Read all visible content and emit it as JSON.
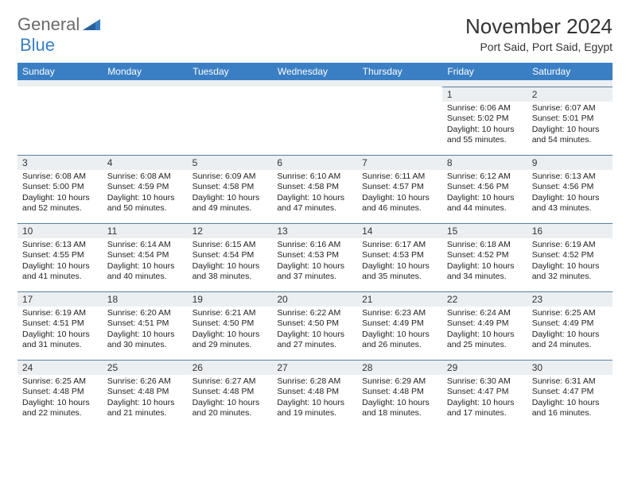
{
  "logo": {
    "part1": "General",
    "part2": "Blue"
  },
  "title": "November 2024",
  "location": "Port Said, Port Said, Egypt",
  "dow": [
    "Sunday",
    "Monday",
    "Tuesday",
    "Wednesday",
    "Thursday",
    "Friday",
    "Saturday"
  ],
  "colors": {
    "header_bg": "#3a7fc4",
    "header_text": "#ffffff",
    "daynum_bg": "#eceff2",
    "border": "#5a7ea0",
    "logo_gray": "#6a6a6a",
    "logo_blue": "#3a7fc4"
  },
  "weeks": [
    [
      null,
      null,
      null,
      null,
      null,
      {
        "n": "1",
        "sr": "6:06 AM",
        "ss": "5:02 PM",
        "dl": "10 hours and 55 minutes."
      },
      {
        "n": "2",
        "sr": "6:07 AM",
        "ss": "5:01 PM",
        "dl": "10 hours and 54 minutes."
      }
    ],
    [
      {
        "n": "3",
        "sr": "6:08 AM",
        "ss": "5:00 PM",
        "dl": "10 hours and 52 minutes."
      },
      {
        "n": "4",
        "sr": "6:08 AM",
        "ss": "4:59 PM",
        "dl": "10 hours and 50 minutes."
      },
      {
        "n": "5",
        "sr": "6:09 AM",
        "ss": "4:58 PM",
        "dl": "10 hours and 49 minutes."
      },
      {
        "n": "6",
        "sr": "6:10 AM",
        "ss": "4:58 PM",
        "dl": "10 hours and 47 minutes."
      },
      {
        "n": "7",
        "sr": "6:11 AM",
        "ss": "4:57 PM",
        "dl": "10 hours and 46 minutes."
      },
      {
        "n": "8",
        "sr": "6:12 AM",
        "ss": "4:56 PM",
        "dl": "10 hours and 44 minutes."
      },
      {
        "n": "9",
        "sr": "6:13 AM",
        "ss": "4:56 PM",
        "dl": "10 hours and 43 minutes."
      }
    ],
    [
      {
        "n": "10",
        "sr": "6:13 AM",
        "ss": "4:55 PM",
        "dl": "10 hours and 41 minutes."
      },
      {
        "n": "11",
        "sr": "6:14 AM",
        "ss": "4:54 PM",
        "dl": "10 hours and 40 minutes."
      },
      {
        "n": "12",
        "sr": "6:15 AM",
        "ss": "4:54 PM",
        "dl": "10 hours and 38 minutes."
      },
      {
        "n": "13",
        "sr": "6:16 AM",
        "ss": "4:53 PM",
        "dl": "10 hours and 37 minutes."
      },
      {
        "n": "14",
        "sr": "6:17 AM",
        "ss": "4:53 PM",
        "dl": "10 hours and 35 minutes."
      },
      {
        "n": "15",
        "sr": "6:18 AM",
        "ss": "4:52 PM",
        "dl": "10 hours and 34 minutes."
      },
      {
        "n": "16",
        "sr": "6:19 AM",
        "ss": "4:52 PM",
        "dl": "10 hours and 32 minutes."
      }
    ],
    [
      {
        "n": "17",
        "sr": "6:19 AM",
        "ss": "4:51 PM",
        "dl": "10 hours and 31 minutes."
      },
      {
        "n": "18",
        "sr": "6:20 AM",
        "ss": "4:51 PM",
        "dl": "10 hours and 30 minutes."
      },
      {
        "n": "19",
        "sr": "6:21 AM",
        "ss": "4:50 PM",
        "dl": "10 hours and 29 minutes."
      },
      {
        "n": "20",
        "sr": "6:22 AM",
        "ss": "4:50 PM",
        "dl": "10 hours and 27 minutes."
      },
      {
        "n": "21",
        "sr": "6:23 AM",
        "ss": "4:49 PM",
        "dl": "10 hours and 26 minutes."
      },
      {
        "n": "22",
        "sr": "6:24 AM",
        "ss": "4:49 PM",
        "dl": "10 hours and 25 minutes."
      },
      {
        "n": "23",
        "sr": "6:25 AM",
        "ss": "4:49 PM",
        "dl": "10 hours and 24 minutes."
      }
    ],
    [
      {
        "n": "24",
        "sr": "6:25 AM",
        "ss": "4:48 PM",
        "dl": "10 hours and 22 minutes."
      },
      {
        "n": "25",
        "sr": "6:26 AM",
        "ss": "4:48 PM",
        "dl": "10 hours and 21 minutes."
      },
      {
        "n": "26",
        "sr": "6:27 AM",
        "ss": "4:48 PM",
        "dl": "10 hours and 20 minutes."
      },
      {
        "n": "27",
        "sr": "6:28 AM",
        "ss": "4:48 PM",
        "dl": "10 hours and 19 minutes."
      },
      {
        "n": "28",
        "sr": "6:29 AM",
        "ss": "4:48 PM",
        "dl": "10 hours and 18 minutes."
      },
      {
        "n": "29",
        "sr": "6:30 AM",
        "ss": "4:47 PM",
        "dl": "10 hours and 17 minutes."
      },
      {
        "n": "30",
        "sr": "6:31 AM",
        "ss": "4:47 PM",
        "dl": "10 hours and 16 minutes."
      }
    ]
  ],
  "labels": {
    "sunrise": "Sunrise:",
    "sunset": "Sunset:",
    "daylight": "Daylight:"
  }
}
